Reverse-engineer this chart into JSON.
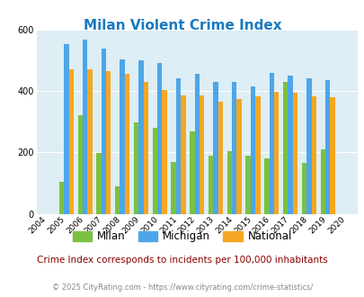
{
  "title": "Milan Violent Crime Index",
  "years": [
    2004,
    2005,
    2006,
    2007,
    2008,
    2009,
    2010,
    2011,
    2012,
    2013,
    2014,
    2015,
    2016,
    2017,
    2018,
    2019,
    2020
  ],
  "milan": [
    0,
    105,
    320,
    197,
    90,
    298,
    280,
    170,
    270,
    188,
    205,
    188,
    182,
    430,
    165,
    210,
    0
  ],
  "michigan": [
    0,
    553,
    568,
    538,
    502,
    500,
    492,
    443,
    455,
    430,
    430,
    415,
    460,
    450,
    443,
    435,
    0
  ],
  "national": [
    0,
    470,
    472,
    465,
    455,
    430,
    403,
    387,
    387,
    365,
    375,
    383,
    399,
    395,
    382,
    379,
    0
  ],
  "milan_color": "#7ac143",
  "michigan_color": "#4da6e8",
  "national_color": "#f5a623",
  "bg_color": "#ddeef4",
  "ylim": [
    0,
    600
  ],
  "yticks": [
    0,
    200,
    400,
    600
  ],
  "subtitle": "Crime Index corresponds to incidents per 100,000 inhabitants",
  "footer": "© 2025 CityRating.com - https://www.cityrating.com/crime-statistics/",
  "title_color": "#1a7abf",
  "subtitle_color": "#8b0000",
  "footer_color": "#888888"
}
